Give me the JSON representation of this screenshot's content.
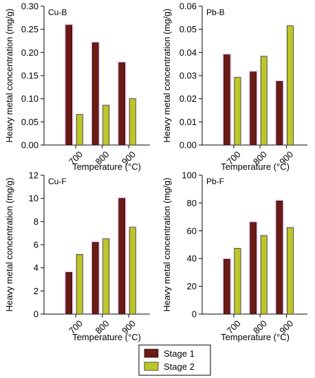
{
  "chart_data": [
    {
      "type": "bar",
      "panel_label": "Cu-B",
      "categories": [
        "700",
        "800",
        "900"
      ],
      "series": [
        {
          "name": "Stage 1",
          "values": [
            0.259,
            0.221,
            0.178
          ]
        },
        {
          "name": "Stage 2",
          "values": [
            0.066,
            0.086,
            0.1
          ]
        }
      ],
      "xlabel": "Temperature (°C)",
      "ylabel": "Heavy metal concentration (mg/g)",
      "ylim": [
        0,
        0.3
      ],
      "yticks": [
        "0.00",
        "0.05",
        "0.10",
        "0.15",
        "0.20",
        "0.25",
        "0.30"
      ]
    },
    {
      "type": "bar",
      "panel_label": "Pb-B",
      "categories": [
        "700",
        "800",
        "900"
      ],
      "series": [
        {
          "name": "Stage 1",
          "values": [
            0.039,
            0.0316,
            0.0275
          ]
        },
        {
          "name": "Stage 2",
          "values": [
            0.0292,
            0.0383,
            0.0515
          ]
        }
      ],
      "xlabel": "Temperature (°C)",
      "ylabel": "Heavy metal concentration (mg/g)",
      "ylim": [
        0,
        0.06
      ],
      "yticks": [
        "0.00",
        "0.01",
        "0.02",
        "0.03",
        "0.04",
        "0.05",
        "0.06"
      ]
    },
    {
      "type": "bar",
      "panel_label": "Cu-F",
      "categories": [
        "700",
        "800",
        "900"
      ],
      "series": [
        {
          "name": "Stage 1",
          "values": [
            3.6,
            6.2,
            10.0
          ]
        },
        {
          "name": "Stage 2",
          "values": [
            5.15,
            6.5,
            7.5
          ]
        }
      ],
      "xlabel": "Temperature (°C)",
      "ylabel": "Heavy metal concentration (mg/g)",
      "ylim": [
        0,
        12
      ],
      "yticks": [
        "0",
        "2",
        "4",
        "6",
        "8",
        "10",
        "12"
      ]
    },
    {
      "type": "bar",
      "panel_label": "Pb-F",
      "categories": [
        "700",
        "800",
        "900"
      ],
      "series": [
        {
          "name": "Stage 1",
          "values": [
            39.5,
            66.0,
            81.5
          ]
        },
        {
          "name": "Stage 2",
          "values": [
            47.3,
            56.5,
            62.3
          ]
        }
      ],
      "xlabel": "Temperature (°C)",
      "ylabel": "Heavy metal concentration (mg/g)",
      "ylim": [
        0,
        100
      ],
      "yticks": [
        "0",
        "20",
        "40",
        "60",
        "80",
        "100"
      ]
    }
  ],
  "legend": {
    "placement": "bottom-center",
    "items": [
      {
        "label": "Stage 1",
        "color": "#6b1b14"
      },
      {
        "label": "Stage 2",
        "color": "#bcc62a"
      }
    ]
  },
  "colors": {
    "stage1": "#6b1b14",
    "stage2": "#bcc62a",
    "stage1_glow": "#f1a6e8",
    "stage2_glow": "#e8d8f0"
  }
}
